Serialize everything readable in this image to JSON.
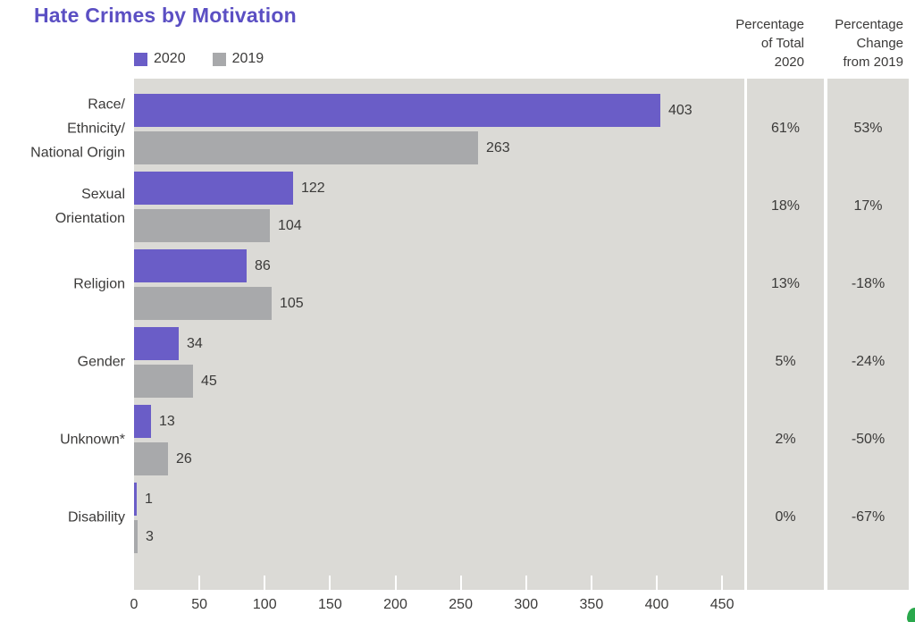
{
  "title": "Hate Crimes by Motivation",
  "colors": {
    "title_purple": "#5b4fc3",
    "bar_2020": "#6a5dc7",
    "bar_2019": "#a8a9ab",
    "panel_bg": "#dbdad6",
    "text": "#3b3a39",
    "green_mark": "#2aa84c"
  },
  "legend": [
    {
      "label": "2020",
      "color_key": "bar_2020"
    },
    {
      "label": "2019",
      "color_key": "bar_2019"
    }
  ],
  "columns": {
    "pct_total": {
      "header_lines": [
        "Percentage",
        "of Total",
        "2020"
      ]
    },
    "pct_change": {
      "header_lines": [
        "Percentage",
        "Change",
        "from 2019"
      ]
    }
  },
  "rows": [
    {
      "label_lines": [
        "Race/",
        "Ethnicity/",
        "National Origin"
      ],
      "v2020": 403,
      "v2019": 263,
      "pct_total": "61%",
      "pct_change": "53%"
    },
    {
      "label_lines": [
        "Sexual",
        "Orientation"
      ],
      "v2020": 122,
      "v2019": 104,
      "pct_total": "18%",
      "pct_change": "17%"
    },
    {
      "label_lines": [
        "Religion"
      ],
      "v2020": 86,
      "v2019": 105,
      "pct_total": "13%",
      "pct_change": "-18%"
    },
    {
      "label_lines": [
        "Gender"
      ],
      "v2020": 34,
      "v2019": 45,
      "pct_total": "5%",
      "pct_change": "-24%"
    },
    {
      "label_lines": [
        "Unknown*"
      ],
      "v2020": 13,
      "v2019": 26,
      "pct_total": "2%",
      "pct_change": "-50%"
    },
    {
      "label_lines": [
        "Disability"
      ],
      "v2020": 1,
      "v2019": 3,
      "pct_total": "0%",
      "pct_change": "-67%"
    }
  ],
  "chart_data": {
    "type": "bar",
    "orientation": "horizontal",
    "title": "Hate Crimes by Motivation",
    "categories": [
      "Race/Ethnicity/National Origin",
      "Sexual Orientation",
      "Religion",
      "Gender",
      "Unknown*",
      "Disability"
    ],
    "series": [
      {
        "name": "2020",
        "color": "#6a5dc7",
        "values": [
          403,
          122,
          86,
          34,
          13,
          1
        ]
      },
      {
        "name": "2019",
        "color": "#a8a9ab",
        "values": [
          263,
          104,
          105,
          45,
          26,
          3
        ]
      }
    ],
    "extra_columns": [
      {
        "header": "Percentage of Total 2020",
        "values": [
          "61%",
          "18%",
          "13%",
          "5%",
          "2%",
          "0%"
        ]
      },
      {
        "header": "Percentage Change from 2019",
        "values": [
          "53%",
          "17%",
          "-18%",
          "-24%",
          "-50%",
          "-67%"
        ]
      }
    ],
    "x_ticks": [
      0,
      50,
      100,
      150,
      200,
      250,
      300,
      350,
      400,
      450
    ],
    "xlim": [
      0,
      467
    ],
    "xlabel": "",
    "ylabel": "",
    "grid": false,
    "legend_position": "top-left"
  }
}
